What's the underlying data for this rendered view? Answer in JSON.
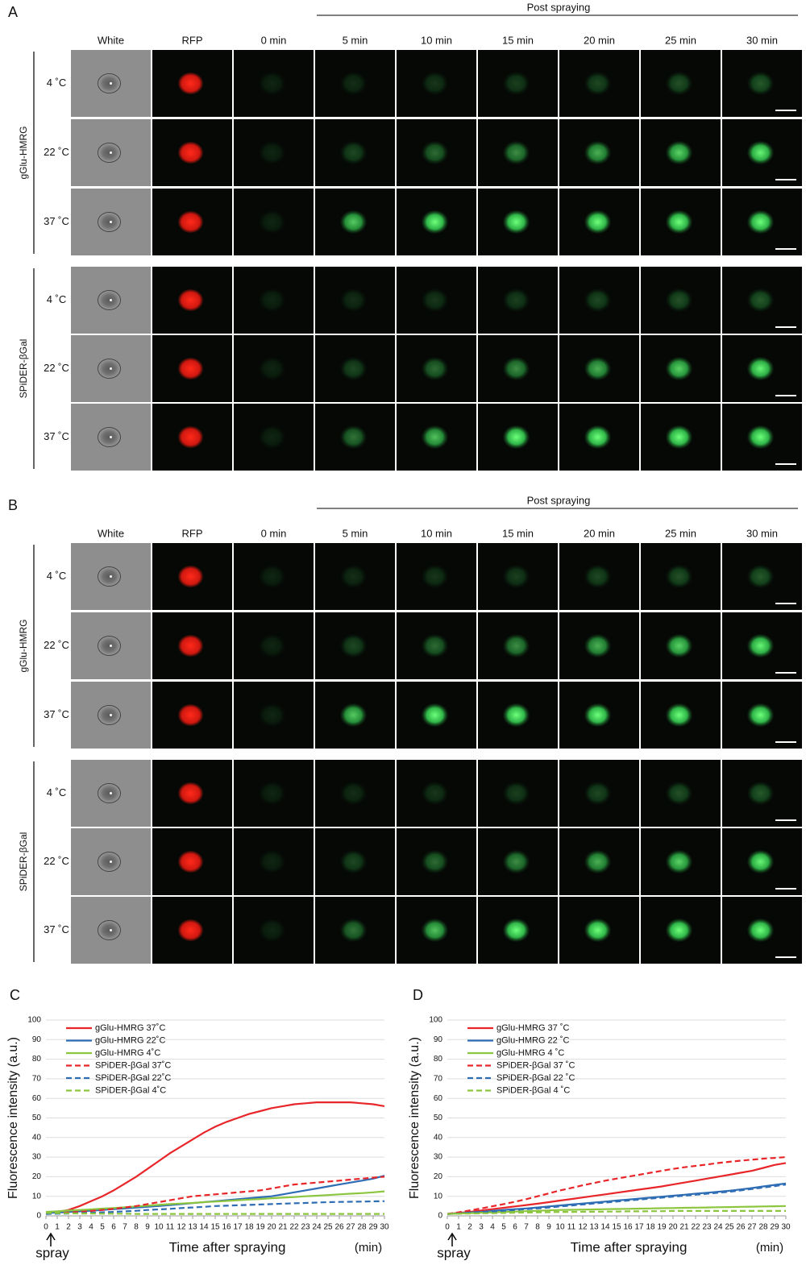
{
  "panels": [
    {
      "label": "A",
      "header": "Post spraying",
      "columns": [
        "White",
        "RFP",
        "0 min",
        "5 min",
        "10 min",
        "15 min",
        "20 min",
        "25 min",
        "30 min"
      ],
      "groups": [
        {
          "name": "gGlu-HMRG",
          "rows": [
            "4 ˚C",
            "22 ˚C",
            "37 ˚C"
          ]
        },
        {
          "name": "SPiDER-βGal",
          "rows": [
            "4 ˚C",
            "22 ˚C",
            "37 ˚C"
          ]
        }
      ]
    },
    {
      "label": "B",
      "header": "Post spraying",
      "columns": [
        "White",
        "RFP",
        "0 min",
        "5 min",
        "10 min",
        "15 min",
        "20 min",
        "25 min",
        "30 min"
      ],
      "groups": [
        {
          "name": "gGlu-HMRG",
          "rows": [
            "4 ˚C",
            "22 ˚C",
            "37 ˚C"
          ]
        },
        {
          "name": "SPiDER-βGal",
          "rows": [
            "4 ˚C",
            "22 ˚C",
            "37 ˚C"
          ]
        }
      ]
    }
  ],
  "chart_data": [
    {
      "type": "line",
      "panel": "C",
      "y_label": "Fluorescence intensity (a.u.)",
      "x_label": "Time after spraying",
      "x_unit": "(min)",
      "annotation": "spray",
      "x": [
        0,
        1,
        2,
        3,
        4,
        5,
        6,
        7,
        8,
        9,
        10,
        11,
        12,
        13,
        14,
        15,
        16,
        17,
        18,
        19,
        20,
        21,
        22,
        23,
        24,
        25,
        26,
        27,
        28,
        29,
        30
      ],
      "xlim": [
        0,
        30
      ],
      "xticks": [
        0,
        1,
        2,
        3,
        4,
        5,
        6,
        7,
        8,
        9,
        10,
        11,
        12,
        13,
        14,
        15,
        16,
        17,
        18,
        19,
        20,
        21,
        22,
        23,
        24,
        25,
        26,
        27,
        28,
        29,
        30
      ],
      "ylim": [
        0,
        100
      ],
      "yticks": [
        0,
        10,
        20,
        30,
        40,
        50,
        60,
        70,
        80,
        90,
        100
      ],
      "grid": true,
      "legend": "upper-left",
      "series": [
        {
          "name": "gGlu-HMRG 37˚C",
          "color": "#e8262a",
          "style": "solid",
          "values": [
            1.5,
            2,
            3,
            5,
            7.5,
            10,
            13,
            16.5,
            20,
            24,
            28,
            32,
            35.5,
            39,
            42.5,
            45.5,
            48,
            50,
            52,
            53.5,
            55,
            56,
            57,
            57.5,
            58,
            58,
            58,
            58,
            57.5,
            57,
            56
          ]
        },
        {
          "name": "gGlu-HMRG 22˚C",
          "color": "#2e6db4",
          "style": "solid",
          "values": [
            1.5,
            1.7,
            2,
            2.3,
            2.6,
            3,
            3.4,
            3.8,
            4.2,
            4.6,
            5,
            5.5,
            6,
            6.5,
            7,
            7.5,
            8,
            8.5,
            9,
            9.5,
            10,
            11,
            12,
            13,
            14,
            15,
            16,
            17,
            18,
            19,
            20.5
          ]
        },
        {
          "name": "gGlu-HMRG 4˚C",
          "color": "#8cc63f",
          "style": "solid",
          "values": [
            2,
            2.3,
            2.7,
            3,
            3.3,
            3.7,
            4,
            4.4,
            4.8,
            5.2,
            5.6,
            6,
            6.3,
            6.6,
            7,
            7.3,
            7.6,
            8,
            8.3,
            8.6,
            9,
            9.3,
            9.6,
            10,
            10.3,
            10.6,
            11,
            11.3,
            11.6,
            12,
            12.5
          ]
        },
        {
          "name": "SPiDER-βGal 37˚C",
          "color": "#e8262a",
          "style": "dashed",
          "values": [
            1,
            1.3,
            1.7,
            2,
            2.5,
            3,
            3.6,
            4.3,
            5,
            6,
            7,
            8,
            9,
            10,
            10.5,
            11,
            11.5,
            12,
            12.5,
            13,
            14,
            15,
            16,
            16.5,
            17,
            17.5,
            18,
            18.5,
            19,
            19.5,
            20
          ]
        },
        {
          "name": "SPiDER-βGal 22˚C",
          "color": "#2e6db4",
          "style": "dashed",
          "values": [
            1,
            1.1,
            1.2,
            1.4,
            1.6,
            1.8,
            2,
            2.3,
            2.6,
            3,
            3.3,
            3.6,
            4,
            4.3,
            4.6,
            5,
            5.2,
            5.4,
            5.6,
            5.8,
            6,
            6.2,
            6.4,
            6.6,
            6.8,
            7,
            7.1,
            7.2,
            7.3,
            7.4,
            7.5
          ]
        },
        {
          "name": "SPiDER-βGal 4˚C",
          "color": "#8cc63f",
          "style": "dashed",
          "values": [
            1.5,
            1.4,
            1.3,
            1.2,
            1.2,
            1.1,
            1.1,
            1.1,
            1,
            1,
            1,
            1,
            1,
            1,
            1,
            1,
            1,
            1,
            1,
            1,
            1,
            1,
            1,
            1,
            1,
            1,
            1,
            1,
            1,
            1,
            1
          ]
        }
      ]
    },
    {
      "type": "line",
      "panel": "D",
      "y_label": "Fluorescence intensity (a.u.)",
      "x_label": "Time after spraying",
      "x_unit": "(min)",
      "annotation": "spray",
      "x": [
        0,
        1,
        2,
        3,
        4,
        5,
        6,
        7,
        8,
        9,
        10,
        11,
        12,
        13,
        14,
        15,
        16,
        17,
        18,
        19,
        20,
        21,
        22,
        23,
        24,
        25,
        26,
        27,
        28,
        29,
        30
      ],
      "xlim": [
        0,
        30
      ],
      "xticks": [
        0,
        1,
        2,
        3,
        4,
        5,
        6,
        7,
        8,
        9,
        10,
        11,
        12,
        13,
        14,
        15,
        16,
        17,
        18,
        19,
        20,
        21,
        22,
        23,
        24,
        25,
        26,
        27,
        28,
        29,
        30
      ],
      "ylim": [
        0,
        100
      ],
      "yticks": [
        0,
        10,
        20,
        30,
        40,
        50,
        60,
        70,
        80,
        90,
        100
      ],
      "grid": true,
      "legend": "upper-left",
      "series": [
        {
          "name": "gGlu-HMRG 37 ˚C",
          "color": "#e8262a",
          "style": "solid",
          "values": [
            1,
            1.5,
            2,
            2.7,
            3.4,
            4.1,
            4.8,
            5.5,
            6.2,
            7,
            7.8,
            8.6,
            9.4,
            10.2,
            11,
            11.8,
            12.6,
            13.4,
            14.2,
            15,
            16,
            17,
            18,
            19,
            20,
            21,
            22,
            23,
            24.5,
            26,
            27
          ]
        },
        {
          "name": "gGlu-HMRG 22 ˚C",
          "color": "#2e6db4",
          "style": "solid",
          "values": [
            1,
            1.3,
            1.7,
            2,
            2.5,
            3,
            3.4,
            3.8,
            4.3,
            4.8,
            5.3,
            5.8,
            6.3,
            6.8,
            7.3,
            7.8,
            8.3,
            8.8,
            9.3,
            9.8,
            10.3,
            10.8,
            11.3,
            11.8,
            12.3,
            12.8,
            13.5,
            14.2,
            15,
            15.8,
            16.5
          ]
        },
        {
          "name": "gGlu-HMRG 4 ˚C",
          "color": "#8cc63f",
          "style": "solid",
          "values": [
            1,
            1.2,
            1.4,
            1.6,
            1.8,
            2,
            2.2,
            2.4,
            2.6,
            2.8,
            3,
            3.1,
            3.2,
            3.3,
            3.4,
            3.5,
            3.6,
            3.7,
            3.8,
            3.9,
            4,
            4.1,
            4.2,
            4.3,
            4.4,
            4.5,
            4.6,
            4.7,
            4.8,
            4.9,
            5
          ]
        },
        {
          "name": "SPiDER-βGal 37 ˚C",
          "color": "#e8262a",
          "style": "dashed",
          "values": [
            1,
            1.8,
            2.8,
            3.8,
            4.9,
            6,
            7.2,
            8.5,
            10,
            11.5,
            13,
            14.3,
            15.6,
            16.8,
            18,
            19,
            20,
            21,
            22,
            23,
            24,
            24.8,
            25.5,
            26.2,
            27,
            27.6,
            28.2,
            28.7,
            29.2,
            29.6,
            30
          ]
        },
        {
          "name": "SPiDER-βGal 22 ˚C",
          "color": "#2e6db4",
          "style": "dashed",
          "values": [
            1,
            1.2,
            1.5,
            1.8,
            2.2,
            2.6,
            3,
            3.4,
            3.8,
            4.3,
            4.8,
            5.3,
            5.8,
            6.3,
            6.8,
            7.3,
            7.8,
            8.3,
            8.8,
            9.3,
            9.8,
            10.3,
            10.8,
            11.3,
            11.8,
            12.3,
            13,
            13.7,
            14.5,
            15.2,
            16
          ]
        },
        {
          "name": "SPiDER-βGal 4 ˚C",
          "color": "#8cc63f",
          "style": "dashed",
          "values": [
            1,
            1.1,
            1.2,
            1.3,
            1.4,
            1.5,
            1.6,
            1.7,
            1.8,
            1.9,
            2,
            2,
            2.1,
            2.1,
            2.2,
            2.2,
            2.3,
            2.3,
            2.4,
            2.4,
            2.5,
            2.5,
            2.5,
            2.5,
            2.5,
            2.5,
            2.5,
            2.5,
            2.5,
            2.5,
            2.5
          ]
        }
      ]
    }
  ]
}
